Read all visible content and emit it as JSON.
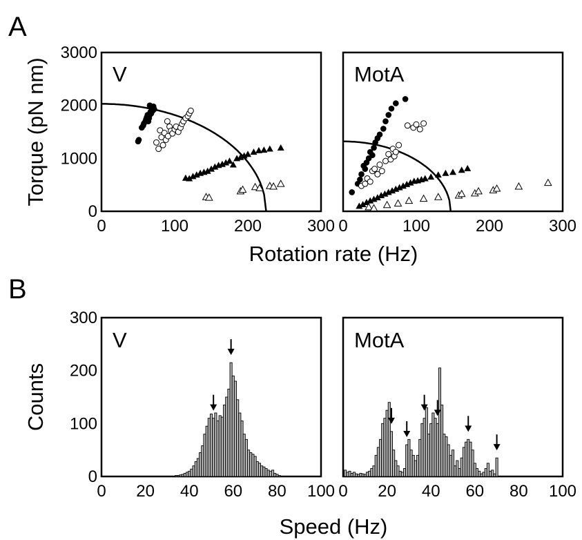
{
  "panel_letters": {
    "a": "A",
    "b": "B"
  },
  "panel_a": {
    "ylabel": "Torque (pN nm)",
    "xlabel": "Rotation rate (Hz)"
  },
  "panel_b": {
    "ylabel": "Counts",
    "xlabel": "Speed (Hz)"
  },
  "chart_data": [
    {
      "type": "scatter",
      "id": "A-V",
      "label": "V",
      "xlim": [
        0,
        300
      ],
      "ylim": [
        0,
        3000
      ],
      "xticks": [
        0,
        100,
        200,
        300
      ],
      "yticks": [
        0,
        1000,
        2000,
        3000
      ],
      "xtick_labels": [
        "0",
        "100",
        "200",
        "300"
      ],
      "ytick_labels": [
        "0",
        "1000",
        "2000",
        "3000"
      ],
      "series": [
        {
          "marker": "filled-circle",
          "points": [
            [
              50,
              1320
            ],
            [
              51,
              1350
            ],
            [
              55,
              1580
            ],
            [
              57,
              1620
            ],
            [
              58,
              1660
            ],
            [
              60,
              1700
            ],
            [
              61,
              1740
            ],
            [
              62,
              1780
            ],
            [
              63,
              1820
            ],
            [
              64,
              1700
            ],
            [
              65,
              1760
            ],
            [
              66,
              1820
            ],
            [
              66,
              2000
            ],
            [
              67,
              1880
            ],
            [
              68,
              1850
            ],
            [
              69,
              1940
            ],
            [
              70,
              1900
            ],
            [
              71,
              1980
            ],
            [
              72,
              1930
            ]
          ]
        },
        {
          "marker": "open-circle",
          "points": [
            [
              75,
              1300
            ],
            [
              78,
              1180
            ],
            [
              80,
              1530
            ],
            [
              82,
              1400
            ],
            [
              84,
              1250
            ],
            [
              86,
              1480
            ],
            [
              88,
              1350
            ],
            [
              90,
              1700
            ],
            [
              91,
              1420
            ],
            [
              93,
              1600
            ],
            [
              95,
              1520
            ],
            [
              97,
              1470
            ],
            [
              100,
              1550
            ],
            [
              102,
              1600
            ],
            [
              105,
              1500
            ],
            [
              108,
              1580
            ],
            [
              110,
              1650
            ],
            [
              112,
              1700
            ],
            [
              115,
              1760
            ],
            [
              118,
              1800
            ],
            [
              120,
              1850
            ],
            [
              122,
              1900
            ]
          ]
        },
        {
          "marker": "filled-triangle",
          "points": [
            [
              115,
              630
            ],
            [
              120,
              620
            ],
            [
              125,
              660
            ],
            [
              130,
              690
            ],
            [
              135,
              720
            ],
            [
              140,
              740
            ],
            [
              145,
              760
            ],
            [
              150,
              800
            ],
            [
              155,
              840
            ],
            [
              160,
              870
            ],
            [
              165,
              890
            ],
            [
              170,
              920
            ],
            [
              175,
              950
            ],
            [
              180,
              880
            ],
            [
              185,
              1000
            ],
            [
              190,
              1020
            ],
            [
              195,
              1050
            ],
            [
              200,
              1080
            ],
            [
              208,
              1120
            ],
            [
              215,
              1150
            ],
            [
              222,
              1160
            ],
            [
              230,
              1180
            ],
            [
              245,
              1200
            ]
          ]
        },
        {
          "marker": "open-triangle",
          "points": [
            [
              143,
              270
            ],
            [
              147,
              260
            ],
            [
              190,
              380
            ],
            [
              193,
              410
            ],
            [
              210,
              460
            ],
            [
              216,
              440
            ],
            [
              230,
              480
            ],
            [
              235,
              470
            ],
            [
              245,
              520
            ]
          ]
        }
      ],
      "fit_curve": {
        "x_intercept": 225,
        "y_intercept": 2030
      }
    },
    {
      "type": "scatter",
      "id": "A-MotA",
      "label": "MotA",
      "xlim": [
        0,
        300
      ],
      "ylim": [
        0,
        3000
      ],
      "xticks": [
        0,
        100,
        200,
        300
      ],
      "xtick_labels": [
        "0",
        "100",
        "200",
        "300"
      ],
      "series": [
        {
          "marker": "filled-circle",
          "points": [
            [
              12,
              360
            ],
            [
              20,
              520
            ],
            [
              23,
              600
            ],
            [
              25,
              700
            ],
            [
              28,
              860
            ],
            [
              30,
              800
            ],
            [
              32,
              920
            ],
            [
              35,
              1000
            ],
            [
              37,
              1120
            ],
            [
              40,
              1060
            ],
            [
              42,
              1200
            ],
            [
              44,
              1300
            ],
            [
              47,
              1380
            ],
            [
              50,
              1450
            ],
            [
              55,
              1560
            ],
            [
              58,
              1700
            ],
            [
              62,
              1820
            ],
            [
              66,
              1940
            ],
            [
              72,
              2040
            ],
            [
              85,
              2120
            ]
          ]
        },
        {
          "marker": "open-circle",
          "points": [
            [
              25,
              480
            ],
            [
              30,
              520
            ],
            [
              33,
              620
            ],
            [
              37,
              560
            ],
            [
              40,
              760
            ],
            [
              43,
              800
            ],
            [
              47,
              700
            ],
            [
              50,
              880
            ],
            [
              53,
              760
            ],
            [
              58,
              950
            ],
            [
              62,
              1080
            ],
            [
              65,
              980
            ],
            [
              68,
              1180
            ],
            [
              70,
              1040
            ],
            [
              72,
              1120
            ],
            [
              76,
              1250
            ],
            [
              88,
              1620
            ],
            [
              96,
              1580
            ],
            [
              100,
              1640
            ],
            [
              105,
              1550
            ],
            [
              110,
              1660
            ]
          ]
        },
        {
          "marker": "filled-triangle",
          "points": [
            [
              22,
              100
            ],
            [
              27,
              130
            ],
            [
              32,
              170
            ],
            [
              37,
              200
            ],
            [
              42,
              230
            ],
            [
              47,
              260
            ],
            [
              52,
              300
            ],
            [
              57,
              330
            ],
            [
              62,
              360
            ],
            [
              67,
              390
            ],
            [
              72,
              420
            ],
            [
              77,
              450
            ],
            [
              82,
              480
            ],
            [
              87,
              510
            ],
            [
              92,
              540
            ],
            [
              97,
              570
            ],
            [
              102,
              580
            ],
            [
              107,
              600
            ],
            [
              112,
              620
            ],
            [
              120,
              650
            ],
            [
              130,
              690
            ],
            [
              140,
              720
            ],
            [
              150,
              740
            ],
            [
              162,
              780
            ],
            [
              170,
              810
            ]
          ]
        },
        {
          "marker": "open-triangle",
          "points": [
            [
              35,
              80
            ],
            [
              42,
              60
            ],
            [
              60,
              120
            ],
            [
              75,
              150
            ],
            [
              90,
              200
            ],
            [
              110,
              240
            ],
            [
              130,
              270
            ],
            [
              158,
              300
            ],
            [
              162,
              330
            ],
            [
              180,
              340
            ],
            [
              185,
              380
            ],
            [
              205,
              400
            ],
            [
              210,
              430
            ],
            [
              240,
              470
            ],
            [
              280,
              540
            ]
          ]
        }
      ],
      "fit_curve": {
        "x_intercept": 147,
        "y_intercept": 1320
      }
    },
    {
      "type": "bar",
      "id": "B-V",
      "label": "V",
      "xlim": [
        0,
        100
      ],
      "ylim": [
        0,
        300
      ],
      "xticks": [
        0,
        20,
        40,
        60,
        80,
        100
      ],
      "yticks": [
        0,
        100,
        200,
        300
      ],
      "xtick_labels": [
        "0",
        "20",
        "40",
        "60",
        "80",
        "100"
      ],
      "ytick_labels": [
        "0",
        "100",
        "200",
        "300"
      ],
      "bin_width": 1,
      "x": [
        34,
        35,
        36,
        37,
        38,
        39,
        40,
        41,
        42,
        43,
        44,
        45,
        46,
        47,
        48,
        49,
        50,
        51,
        52,
        53,
        54,
        55,
        56,
        57,
        58,
        59,
        60,
        61,
        62,
        63,
        64,
        65,
        66,
        67,
        68,
        69,
        70,
        71,
        72,
        73,
        74,
        75,
        76,
        77,
        78,
        79,
        80,
        81
      ],
      "values": [
        2,
        2,
        3,
        4,
        6,
        8,
        10,
        14,
        20,
        28,
        34,
        45,
        58,
        80,
        95,
        110,
        118,
        110,
        120,
        105,
        115,
        112,
        135,
        150,
        165,
        215,
        190,
        180,
        145,
        120,
        105,
        80,
        70,
        50,
        45,
        42,
        38,
        28,
        25,
        20,
        18,
        15,
        12,
        10,
        12,
        6,
        4,
        2
      ],
      "arrows_at": [
        51,
        59
      ]
    },
    {
      "type": "bar",
      "id": "B-MotA",
      "label": "MotA",
      "xlim": [
        0,
        100
      ],
      "ylim": [
        0,
        300
      ],
      "xticks": [
        0,
        20,
        40,
        60,
        80,
        100
      ],
      "xtick_labels": [
        "0",
        "20",
        "40",
        "60",
        "80",
        "100"
      ],
      "bin_width": 1,
      "x": [
        1,
        2,
        3,
        4,
        5,
        6,
        7,
        8,
        9,
        10,
        11,
        12,
        13,
        14,
        15,
        16,
        17,
        18,
        19,
        20,
        21,
        22,
        23,
        24,
        25,
        26,
        27,
        28,
        29,
        30,
        31,
        32,
        33,
        34,
        35,
        36,
        37,
        38,
        39,
        40,
        41,
        42,
        43,
        44,
        45,
        46,
        47,
        48,
        49,
        50,
        51,
        52,
        53,
        54,
        55,
        56,
        57,
        58,
        59,
        60,
        61,
        62,
        63,
        64,
        65,
        66,
        67,
        68,
        69,
        70
      ],
      "values": [
        12,
        8,
        10,
        6,
        8,
        5,
        4,
        6,
        5,
        4,
        8,
        10,
        15,
        20,
        40,
        55,
        70,
        100,
        110,
        125,
        140,
        85,
        50,
        30,
        20,
        10,
        8,
        15,
        60,
        70,
        50,
        40,
        30,
        40,
        70,
        100,
        110,
        130,
        80,
        100,
        120,
        110,
        100,
        205,
        135,
        80,
        75,
        60,
        40,
        50,
        20,
        30,
        15,
        35,
        55,
        65,
        70,
        65,
        50,
        25,
        15,
        10,
        5,
        8,
        15,
        25,
        10,
        12,
        5,
        35
      ],
      "arrows_at": [
        22,
        29,
        37,
        43,
        57,
        70
      ]
    }
  ]
}
